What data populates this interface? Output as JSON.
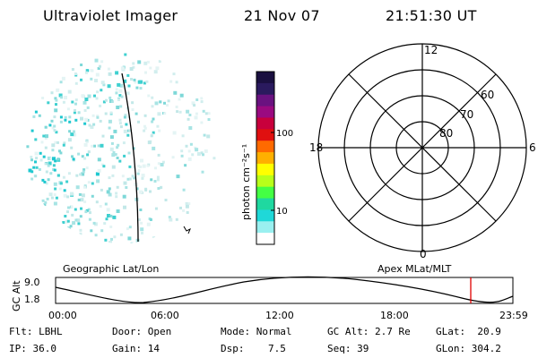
{
  "header": {
    "instrument": "Ultraviolet Imager",
    "date": "21 Nov 07",
    "time": "21:51:30 UT"
  },
  "colorbar": {
    "unit_label": "photon cm⁻²s⁻¹",
    "tick_labels": [
      "100",
      "10"
    ],
    "colors": [
      "#1a1040",
      "#2a1a5e",
      "#6a1280",
      "#9a0a80",
      "#c8003c",
      "#e01010",
      "#ff6a00",
      "#ffb000",
      "#ffff00",
      "#b8ff1a",
      "#44ff44",
      "#1fd8a0",
      "#1fd8d8",
      "#9af0f0",
      "#ffffff"
    ]
  },
  "polar_plot": {
    "mlt_labels": {
      "top": "12",
      "bottom": "0",
      "left": "18",
      "right": "6"
    },
    "lat_labels": [
      "60",
      "70",
      "80"
    ]
  },
  "altitude_panel": {
    "left_caption": "Geographic Lat/Lon",
    "right_caption": "Apex MLat/MLT",
    "axis_label": "GC Alt",
    "y_ticks": [
      "9.0",
      "1.8"
    ],
    "x_ticks": [
      "00:00",
      "06:00",
      "12:00",
      "18:00",
      "23:59"
    ]
  },
  "status": {
    "row1": [
      {
        "label": "Flt:",
        "value": "LBHL"
      },
      {
        "label": "Door:",
        "value": "Open"
      },
      {
        "label": "Mode:",
        "value": "Normal"
      },
      {
        "label": "GC Alt:",
        "value": "2.7 Re"
      },
      {
        "label": "GLat:",
        "value": "20.9"
      }
    ],
    "row2": [
      {
        "label": "IP:",
        "value": "36.0"
      },
      {
        "label": "Gain:",
        "value": "14"
      },
      {
        "label": "Dsp:",
        "value": "7.5"
      },
      {
        "label": "Seq:",
        "value": "39"
      },
      {
        "label": "GLon:",
        "value": "304.2"
      }
    ]
  }
}
